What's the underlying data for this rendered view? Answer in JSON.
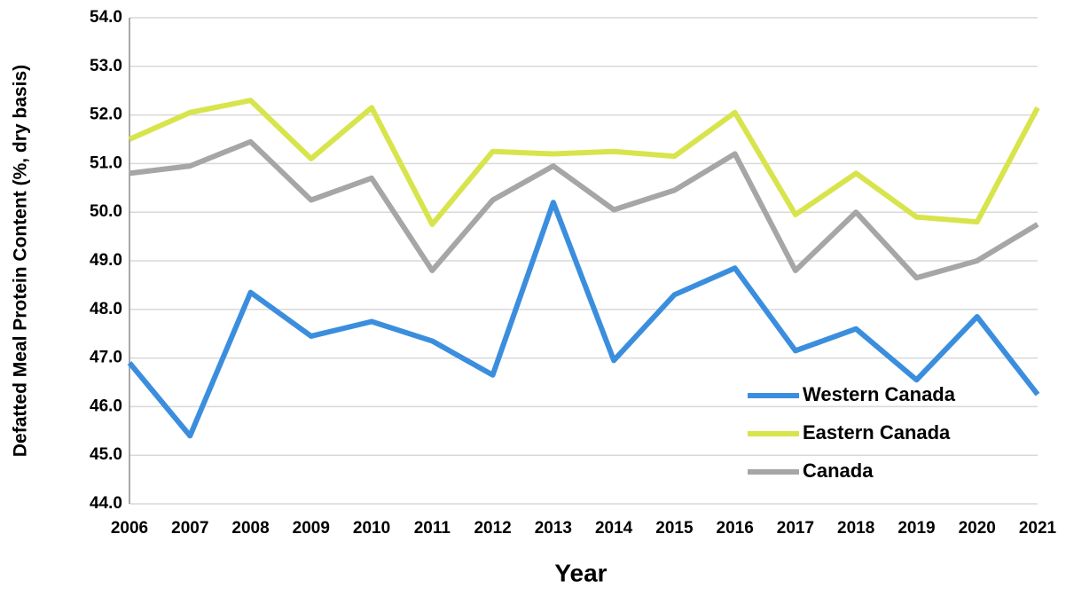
{
  "chart_data": {
    "type": "line",
    "x_label": "Year",
    "y_label": "Defatted Meal Protein Content (%, dry basis)",
    "x": [
      2006,
      2007,
      2008,
      2009,
      2010,
      2011,
      2012,
      2013,
      2014,
      2015,
      2016,
      2017,
      2018,
      2019,
      2020,
      2021
    ],
    "xlim": [
      2006,
      2021
    ],
    "xticks": [
      2006,
      2007,
      2008,
      2009,
      2010,
      2011,
      2012,
      2013,
      2014,
      2015,
      2016,
      2017,
      2018,
      2019,
      2020,
      2021
    ],
    "ylim": [
      44,
      54
    ],
    "yticks": [
      {
        "value": 44,
        "label": "44.0"
      },
      {
        "value": 45,
        "label": "45.0"
      },
      {
        "value": 46,
        "label": "46.0"
      },
      {
        "value": 47,
        "label": "47.0"
      },
      {
        "value": 48,
        "label": "48.0"
      },
      {
        "value": 49,
        "label": "49.0"
      },
      {
        "value": 50,
        "label": "50.0"
      },
      {
        "value": 51,
        "label": "51.0"
      },
      {
        "value": 52,
        "label": "52.0"
      },
      {
        "value": 53,
        "label": "53.0"
      },
      {
        "value": 54,
        "label": "54.0"
      }
    ],
    "grid": true,
    "legend": "lower right",
    "series": [
      {
        "name": "Western Canada",
        "color": "#3b8ede",
        "values": [
          46.9,
          45.4,
          48.35,
          47.45,
          47.75,
          47.35,
          46.65,
          50.2,
          46.95,
          48.3,
          48.85,
          47.15,
          47.6,
          46.55,
          47.85,
          46.25
        ]
      },
      {
        "name": "Eastern Canada",
        "color": "#d8e44c",
        "values": [
          51.5,
          52.05,
          52.3,
          51.1,
          52.15,
          49.75,
          51.25,
          51.2,
          51.25,
          51.15,
          52.05,
          49.95,
          50.8,
          49.9,
          49.8,
          52.15
        ]
      },
      {
        "name": "Canada",
        "color": "#a6a6a6",
        "values": [
          50.8,
          50.95,
          51.45,
          50.25,
          50.7,
          48.8,
          50.25,
          50.95,
          50.05,
          50.45,
          51.2,
          48.8,
          50.0,
          48.65,
          49.0,
          49.75
        ]
      }
    ]
  }
}
